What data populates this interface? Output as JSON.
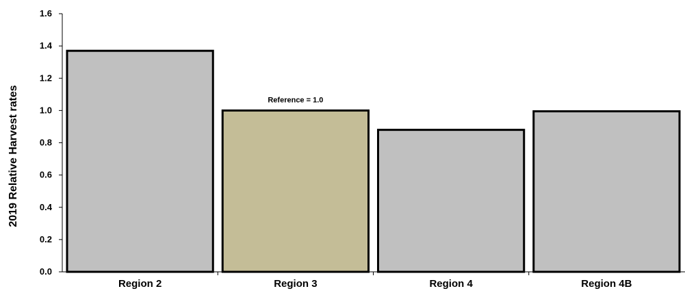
{
  "chart_data": {
    "type": "bar",
    "title": "",
    "xlabel": "",
    "ylabel": "2019 Relative Harvest rates",
    "ylim": [
      0,
      1.6
    ],
    "yticks": [
      "0.0",
      "0.2",
      "0.4",
      "0.6",
      "0.8",
      "1.0",
      "1.2",
      "1.4",
      "1.6"
    ],
    "categories": [
      "Region 2",
      "Region 3",
      "Region 4",
      "Region 4B"
    ],
    "values": [
      1.37,
      1.0,
      0.88,
      0.995
    ],
    "bar_colors": [
      "#c0c0c0",
      "#c4bd97",
      "#c0c0c0",
      "#c0c0c0"
    ],
    "annotations": [
      {
        "text": "Reference = 1.0",
        "category": "Region 3"
      }
    ],
    "grid": false,
    "legend": "none"
  }
}
